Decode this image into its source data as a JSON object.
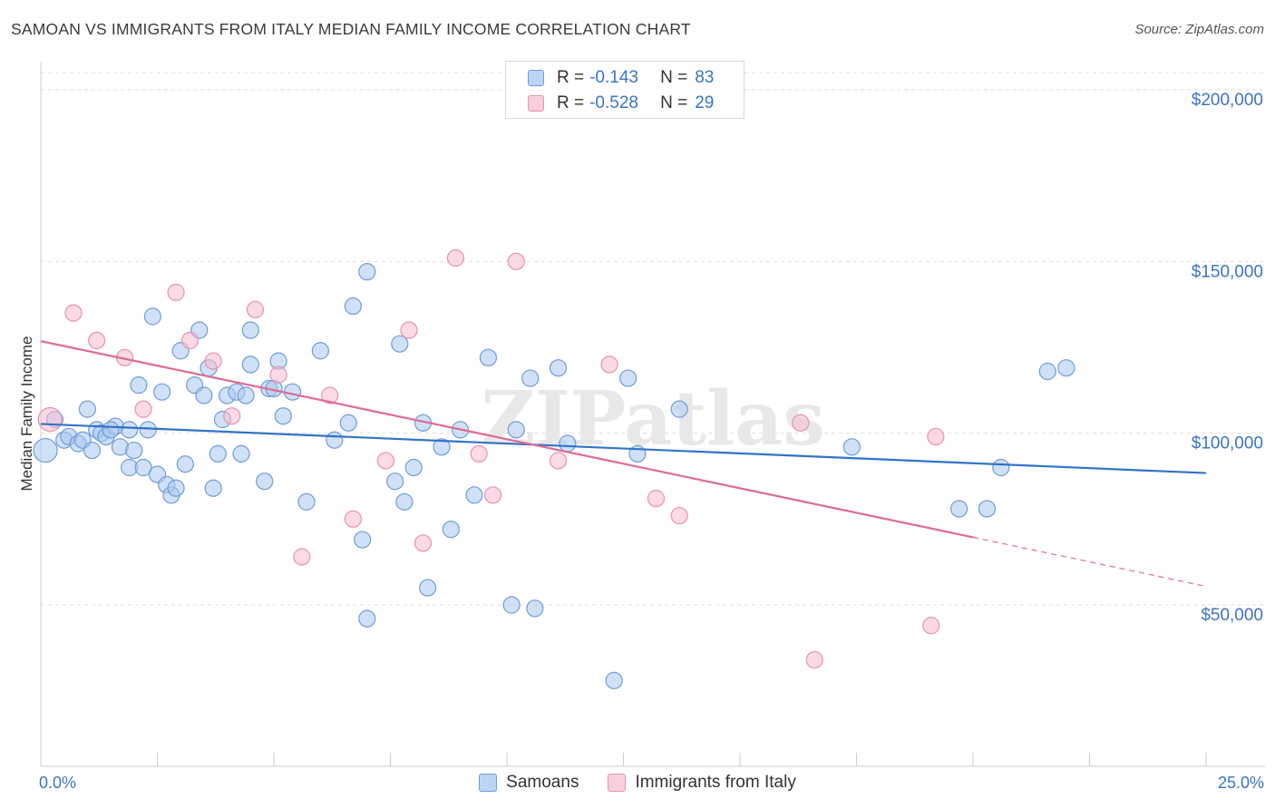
{
  "title": "SAMOAN VS IMMIGRANTS FROM ITALY MEDIAN FAMILY INCOME CORRELATION CHART",
  "source": "Source: ZipAtlas.com",
  "watermark": "ZIPatlas",
  "colors": {
    "samoans_fill": "#a9c9f0",
    "samoans_stroke": "#6f9bd8",
    "samoans_line": "#3273c8",
    "italy_fill": "#f7bcd0",
    "italy_stroke": "#e891b1",
    "italy_line": "#e06a94",
    "axis_label": "#3a74c9",
    "grid": "#dddddd"
  },
  "legend": {
    "rows": [
      {
        "r_label": "R =",
        "r_value": "-0.143",
        "n_label": "N =",
        "n_value": "83"
      },
      {
        "r_label": "R =",
        "r_value": "-0.528",
        "n_label": "N =",
        "n_value": "29"
      }
    ]
  },
  "bottom_legend": [
    "Samoans",
    "Immigrants from Italy"
  ],
  "chart_data": {
    "type": "scatter",
    "title": "SAMOAN VS IMMIGRANTS FROM ITALY MEDIAN FAMILY INCOME CORRELATION CHART",
    "xlabel": "",
    "ylabel": "Median Family Income",
    "x_tick_labels": [
      "0.0%",
      "25.0%"
    ],
    "y_tick_labels": [
      "$50,000",
      "$100,000",
      "$150,000",
      "$200,000"
    ],
    "y_ticks": [
      50000,
      100000,
      150000,
      200000
    ],
    "xlim": [
      0,
      25
    ],
    "ylim": [
      3000,
      205000
    ],
    "grid": true,
    "legend_position": "top-center",
    "series": [
      {
        "name": "Samoans",
        "R": -0.143,
        "N": 83,
        "trend": {
          "x": [
            0,
            25
          ],
          "y": [
            102700,
            88400
          ]
        },
        "points": [
          [
            0.1,
            95000,
            2
          ],
          [
            0.3,
            104000,
            1
          ],
          [
            0.5,
            98000,
            1
          ],
          [
            0.6,
            99000,
            1
          ],
          [
            0.8,
            97000,
            1
          ],
          [
            0.9,
            98000,
            1
          ],
          [
            1.0,
            107000,
            1
          ],
          [
            1.1,
            95000,
            1
          ],
          [
            1.2,
            101000,
            1
          ],
          [
            1.3,
            100000,
            1
          ],
          [
            1.4,
            99000,
            1
          ],
          [
            1.6,
            102000,
            1
          ],
          [
            1.5,
            101000,
            1
          ],
          [
            1.7,
            96000,
            1
          ],
          [
            1.9,
            90000,
            1
          ],
          [
            1.9,
            101000,
            1
          ],
          [
            2.0,
            95000,
            1
          ],
          [
            2.1,
            114000,
            1
          ],
          [
            2.2,
            90000,
            1
          ],
          [
            2.3,
            101000,
            1
          ],
          [
            2.4,
            134000,
            1
          ],
          [
            2.5,
            88000,
            1
          ],
          [
            2.6,
            112000,
            1
          ],
          [
            2.7,
            85000,
            1
          ],
          [
            2.8,
            82000,
            1
          ],
          [
            2.9,
            84000,
            1
          ],
          [
            3.0,
            124000,
            1
          ],
          [
            3.1,
            91000,
            1
          ],
          [
            3.3,
            114000,
            1
          ],
          [
            3.4,
            130000,
            1
          ],
          [
            3.5,
            111000,
            1
          ],
          [
            3.6,
            119000,
            1
          ],
          [
            3.7,
            84000,
            1
          ],
          [
            3.8,
            94000,
            1
          ],
          [
            3.9,
            104000,
            1
          ],
          [
            4.0,
            111000,
            1
          ],
          [
            4.2,
            112000,
            1
          ],
          [
            4.3,
            94000,
            1
          ],
          [
            4.4,
            111000,
            1
          ],
          [
            4.5,
            120000,
            1
          ],
          [
            4.5,
            130000,
            1
          ],
          [
            4.8,
            86000,
            1
          ],
          [
            4.9,
            113000,
            1
          ],
          [
            5.0,
            113000,
            1
          ],
          [
            5.1,
            121000,
            1
          ],
          [
            5.2,
            105000,
            1
          ],
          [
            5.4,
            112000,
            1
          ],
          [
            5.7,
            80000,
            1
          ],
          [
            6.0,
            124000,
            1
          ],
          [
            6.3,
            98000,
            1
          ],
          [
            6.7,
            137000,
            1
          ],
          [
            6.6,
            103000,
            1
          ],
          [
            6.9,
            69000,
            1
          ],
          [
            7.0,
            46000,
            1
          ],
          [
            7.0,
            147000,
            1
          ],
          [
            7.6,
            86000,
            1
          ],
          [
            7.7,
            126000,
            1
          ],
          [
            7.8,
            80000,
            1
          ],
          [
            8.0,
            90000,
            1
          ],
          [
            8.2,
            103000,
            1
          ],
          [
            8.3,
            55000,
            1
          ],
          [
            8.6,
            96000,
            1
          ],
          [
            8.8,
            72000,
            1
          ],
          [
            9.0,
            101000,
            1
          ],
          [
            9.3,
            82000,
            1
          ],
          [
            9.6,
            122000,
            1
          ],
          [
            10.1,
            50000,
            1
          ],
          [
            10.2,
            101000,
            1
          ],
          [
            10.5,
            116000,
            1
          ],
          [
            10.6,
            49000,
            1
          ],
          [
            11.1,
            119000,
            1
          ],
          [
            11.3,
            97000,
            1
          ],
          [
            12.3,
            28000,
            1
          ],
          [
            12.6,
            116000,
            1
          ],
          [
            12.8,
            94000,
            1
          ],
          [
            13.7,
            107000,
            1
          ],
          [
            17.4,
            96000,
            1
          ],
          [
            19.7,
            78000,
            1
          ],
          [
            20.3,
            78000,
            1
          ],
          [
            20.6,
            90000,
            1
          ],
          [
            21.6,
            118000,
            1
          ],
          [
            22.0,
            119000,
            1
          ]
        ]
      },
      {
        "name": "Immigrants from Italy",
        "R": -0.528,
        "N": 29,
        "trend": {
          "x": [
            0,
            20,
            25
          ],
          "y": [
            126800,
            69700,
            55400
          ],
          "solid_until_x": 20
        },
        "points": [
          [
            0.2,
            104000,
            2
          ],
          [
            0.7,
            135000,
            1
          ],
          [
            1.2,
            127000,
            1
          ],
          [
            1.8,
            122000,
            1
          ],
          [
            2.2,
            107000,
            1
          ],
          [
            2.9,
            141000,
            1
          ],
          [
            3.2,
            127000,
            1
          ],
          [
            3.7,
            121000,
            1
          ],
          [
            4.1,
            105000,
            1
          ],
          [
            4.6,
            136000,
            1
          ],
          [
            5.1,
            117000,
            1
          ],
          [
            5.6,
            64000,
            1
          ],
          [
            6.2,
            111000,
            1
          ],
          [
            6.7,
            75000,
            1
          ],
          [
            7.4,
            92000,
            1
          ],
          [
            7.9,
            130000,
            1
          ],
          [
            8.2,
            68000,
            1
          ],
          [
            8.9,
            151000,
            1
          ],
          [
            9.4,
            94000,
            1
          ],
          [
            9.7,
            82000,
            1
          ],
          [
            10.2,
            150000,
            1
          ],
          [
            11.1,
            92000,
            1
          ],
          [
            12.2,
            120000,
            1
          ],
          [
            13.2,
            81000,
            1
          ],
          [
            13.7,
            76000,
            1
          ],
          [
            16.3,
            103000,
            1
          ],
          [
            16.6,
            34000,
            1
          ],
          [
            19.1,
            44000,
            1
          ],
          [
            19.2,
            99000,
            1
          ]
        ]
      }
    ]
  }
}
